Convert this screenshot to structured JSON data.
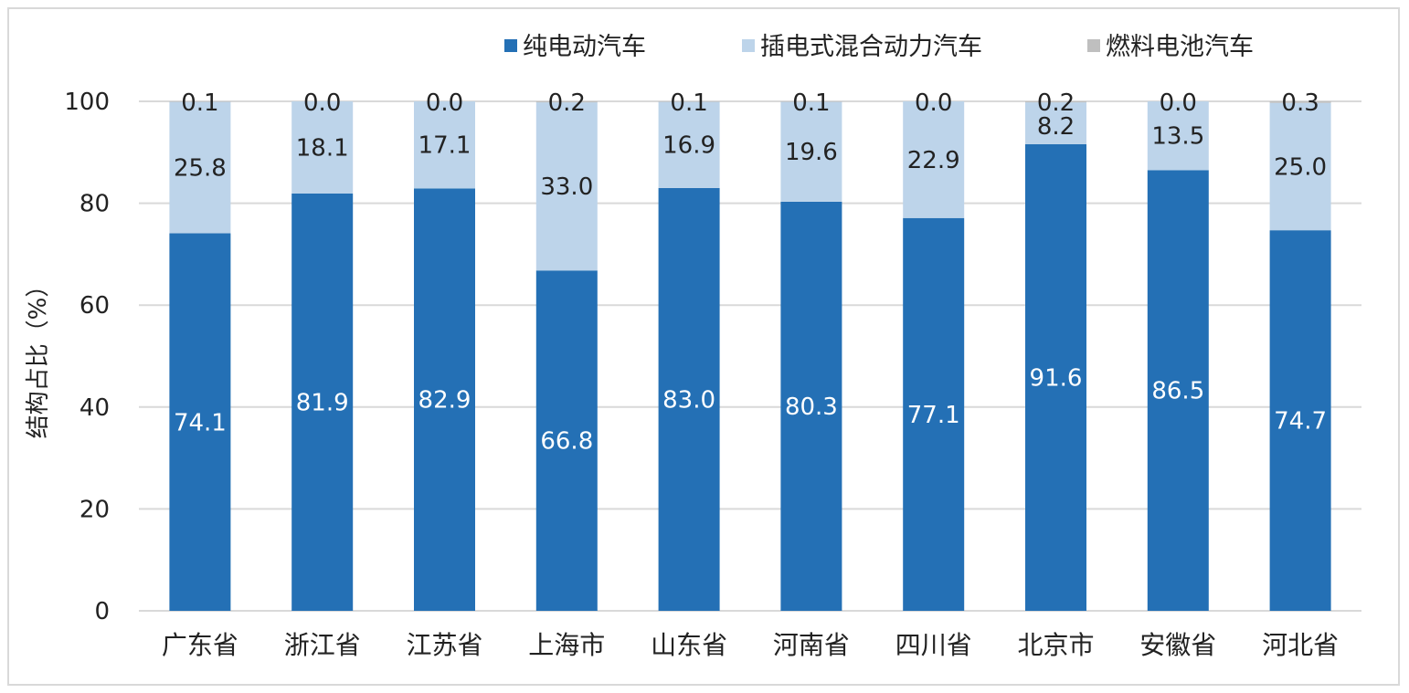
{
  "chart_data": {
    "type": "bar",
    "stacked": true,
    "categories": [
      "广东省",
      "浙江省",
      "江苏省",
      "上海市",
      "山东省",
      "河南省",
      "四川省",
      "北京市",
      "安徽省",
      "河北省"
    ],
    "series": [
      {
        "name": "纯电动汽车",
        "color": "#2470b5",
        "label_color": "#ffffff",
        "values": [
          74.1,
          81.9,
          82.9,
          66.8,
          83.0,
          80.3,
          77.1,
          91.6,
          86.5,
          74.7
        ],
        "labels": [
          "74.1",
          "81.9",
          "82.9",
          "66.8",
          "83.0",
          "80.3",
          "77.1",
          "91.6",
          "86.5",
          "74.7"
        ]
      },
      {
        "name": "插电式混合动力汽车",
        "color": "#bdd4ea",
        "label_color": "#222222",
        "values": [
          25.8,
          18.1,
          17.1,
          33.0,
          16.9,
          19.6,
          22.9,
          8.2,
          13.5,
          25.0
        ],
        "labels": [
          "25.8",
          "18.1",
          "17.1",
          "33.0",
          "16.9",
          "19.6",
          "22.9",
          "8.2",
          "13.5",
          "25.0"
        ]
      },
      {
        "name": "燃料电池汽车",
        "color": "#bfbfbf",
        "label_color": "#222222",
        "values": [
          0.1,
          0.0,
          0.0,
          0.2,
          0.1,
          0.1,
          0.0,
          0.2,
          0.0,
          0.3
        ],
        "labels": [
          "0.1",
          "0.0",
          "0.0",
          "0.2",
          "0.1",
          "0.1",
          "0.0",
          "0.2",
          "0.0",
          "0.3"
        ]
      }
    ],
    "ylabel": "结构占比（%）",
    "ylim": [
      0,
      100
    ],
    "yticks": [
      "0",
      "20",
      "40",
      "60",
      "80",
      "100"
    ],
    "grid": true,
    "legend_position": "top-right",
    "grid_color": "#d9d9d9"
  }
}
